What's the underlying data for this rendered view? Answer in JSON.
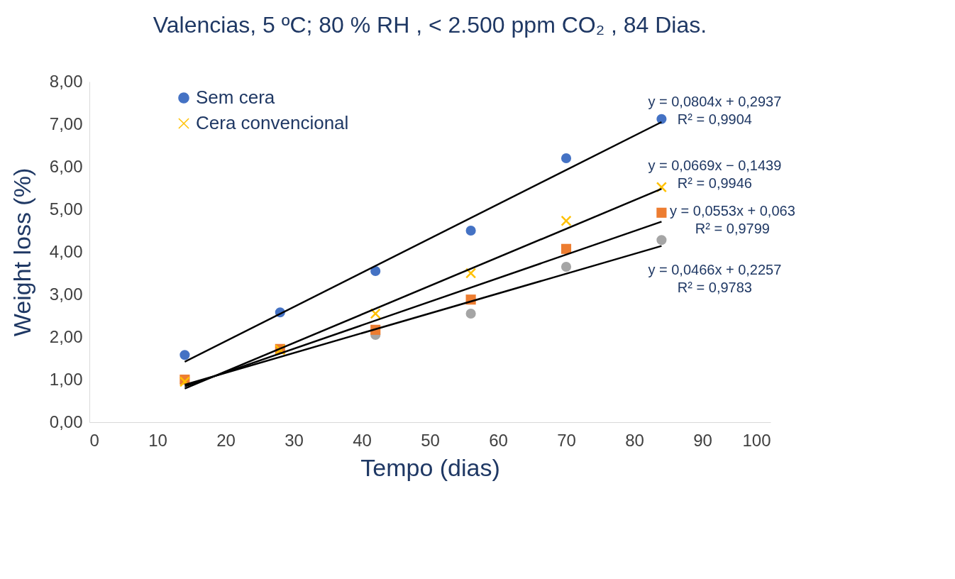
{
  "chart_data": {
    "type": "scatter",
    "title": "Valencias, 5 ºC; 80 % RH , < 2.500 ppm CO₂ , 84 Dias.",
    "xlabel": "Tempo (dias)",
    "ylabel": "Weight loss (%)",
    "x": [
      14,
      28,
      42,
      56,
      70,
      84
    ],
    "series": [
      {
        "name": "Sem cera",
        "color": "#4472c4",
        "marker": "circle",
        "values": [
          1.58,
          2.58,
          3.55,
          4.5,
          6.2,
          7.12
        ]
      },
      {
        "color": "#a5a5a5",
        "marker": "circle",
        "values": [
          null,
          null,
          2.05,
          2.55,
          3.65,
          4.28
        ]
      },
      {
        "color": "#ed7d31",
        "marker": "square",
        "values": [
          1.0,
          1.72,
          2.17,
          2.88,
          4.07,
          4.92
        ]
      },
      {
        "name": "Cera convencional",
        "color": "#ffc000",
        "marker": "cross",
        "values": [
          0.95,
          1.7,
          2.55,
          3.5,
          4.73,
          5.52
        ]
      },
      {
        "type": "line",
        "color": "#000000",
        "values": [
          1.42,
          null,
          null,
          null,
          null,
          7.05
        ]
      },
      {
        "type": "line",
        "color": "#000000",
        "values": [
          0.79,
          null,
          null,
          null,
          null,
          5.48
        ]
      },
      {
        "type": "line",
        "color": "#000000",
        "values": [
          0.84,
          null,
          null,
          null,
          null,
          4.71
        ]
      },
      {
        "type": "line",
        "color": "#000000",
        "values": [
          0.88,
          null,
          null,
          null,
          null,
          4.14
        ]
      }
    ],
    "annotations": [
      "y = 0,0804x + 0,2937\nR² = 0,9904",
      "y = 0,0669x − 0,1439\nR² = 0,9946",
      "y = 0,0553x + 0,063\nR² = 0,9799",
      "y = 0,0466x + 0,2257\nR² = 0,9783"
    ],
    "xlim": [
      0,
      100
    ],
    "xticks": [
      0,
      10,
      20,
      30,
      40,
      50,
      60,
      70,
      80,
      90,
      100
    ],
    "ylim": [
      0,
      8
    ],
    "yticks": [
      {
        "value": 0,
        "label": "0,00"
      },
      {
        "value": 1,
        "label": "1,00"
      },
      {
        "value": 2,
        "label": "2,00"
      },
      {
        "value": 3,
        "label": "3,00"
      },
      {
        "value": 4,
        "label": "4,00"
      },
      {
        "value": 5,
        "label": "5,00"
      },
      {
        "value": 6,
        "label": "6,00"
      },
      {
        "value": 7,
        "label": "7,00"
      },
      {
        "value": 8,
        "label": "8,00"
      }
    ],
    "grid": false,
    "legend": "top left"
  }
}
